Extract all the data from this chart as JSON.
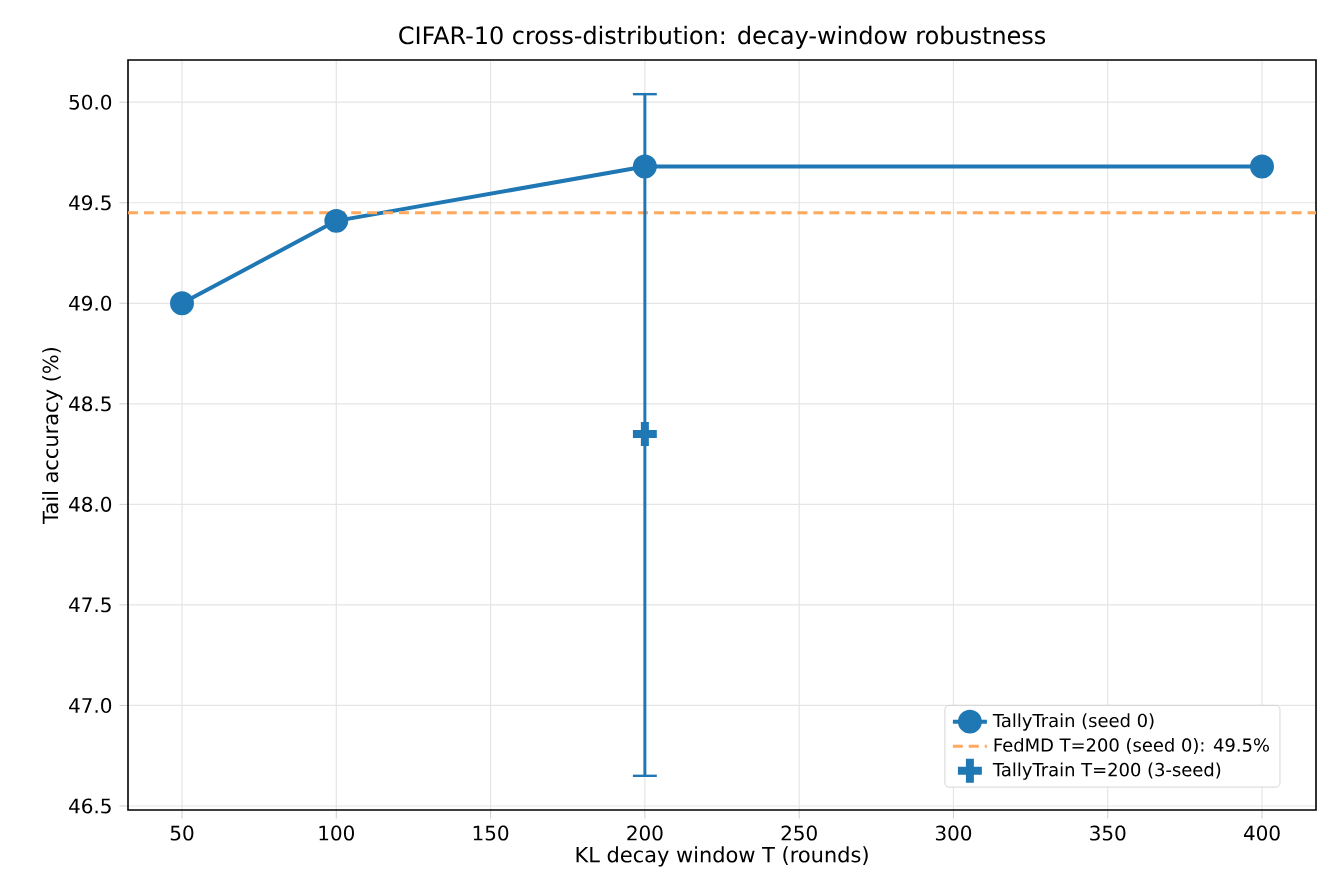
{
  "chart_data": {
    "type": "line",
    "title": "CIFAR-10 cross-distribution: decay-window robustness",
    "xlabel": "KL decay window T (rounds)",
    "ylabel": "Tail accuracy (%)",
    "x": [
      50,
      100,
      200,
      400
    ],
    "series": [
      {
        "name": "TallyTrain (seed 0)",
        "color": "#1f77b4",
        "values": [
          49.0,
          49.41,
          49.68,
          49.68
        ],
        "marker": "circle"
      },
      {
        "name": "TallyTrain T=200 (3-seed)",
        "color": "#1f77b4",
        "type": "scatter",
        "x": [
          200
        ],
        "values": [
          48.35
        ],
        "errors": [
          [
            46.65,
            50.04
          ]
        ],
        "marker": "cross"
      }
    ],
    "ref_lines": [
      {
        "axis": "y",
        "value": 49.45,
        "label": "FedMD T=200 (seed 0): 49.5%",
        "color": "#ffa85e",
        "line_style": "dashed"
      }
    ],
    "xlim": [
      32.5,
      417.5
    ],
    "xticks": [
      50,
      100,
      150,
      200,
      250,
      300,
      350,
      400
    ],
    "ylim": [
      46.48,
      50.21
    ],
    "yticks": [
      {
        "value": 46.5,
        "label": "46.5"
      },
      {
        "value": 47.0,
        "label": "47.0"
      },
      {
        "value": 47.5,
        "label": "47.5"
      },
      {
        "value": 48.0,
        "label": "48.0"
      },
      {
        "value": 48.5,
        "label": "48.5"
      },
      {
        "value": 49.0,
        "label": "49.0"
      },
      {
        "value": 49.5,
        "label": "49.5"
      },
      {
        "value": 50.0,
        "label": "50.0"
      }
    ],
    "grid": true,
    "legend": "bottom right",
    "line_style": "solid"
  }
}
